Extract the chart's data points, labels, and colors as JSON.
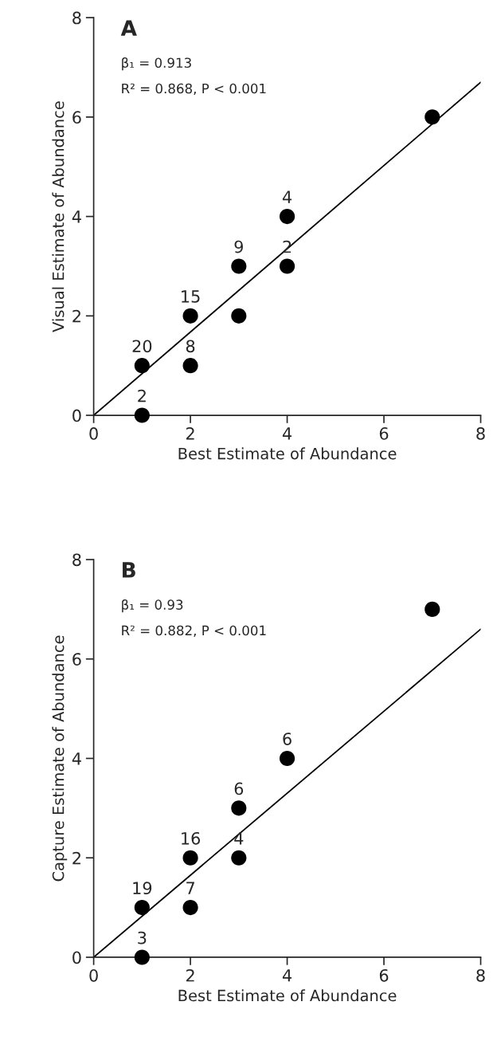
{
  "chart_data": [
    {
      "type": "scatter",
      "title": "A",
      "xlabel": "Best Estimate of Abundance",
      "ylabel": "Visual Estimate of Abundance",
      "xlim": [
        0,
        8
      ],
      "ylim": [
        0,
        8
      ],
      "xticks": [
        0,
        2,
        4,
        6,
        8
      ],
      "yticks": [
        0,
        2,
        4,
        6,
        8
      ],
      "grid": false,
      "legend": false,
      "series": [
        {
          "marker": "circle",
          "color": "#000000",
          "x": [
            1,
            1,
            2,
            2,
            3,
            3,
            4,
            4,
            7
          ],
          "values": [
            0,
            1,
            1,
            2,
            2,
            3,
            3,
            4,
            6
          ]
        },
        {
          "type": "line",
          "color": "#000000",
          "x": [
            0,
            8
          ],
          "values": [
            0,
            6.7
          ]
        }
      ],
      "annotations": [
        "β₁ = 0.913",
        "R² = 0.868, P < 0.001",
        {
          "text": "2",
          "x": 1,
          "y": 0
        },
        {
          "text": "20",
          "x": 1,
          "y": 1
        },
        {
          "text": "8",
          "x": 2,
          "y": 1
        },
        {
          "text": "15",
          "x": 2,
          "y": 2
        },
        {
          "text": "9",
          "x": 3,
          "y": 3
        },
        {
          "text": "2",
          "x": 4,
          "y": 3
        },
        {
          "text": "4",
          "x": 4,
          "y": 4
        }
      ]
    },
    {
      "type": "scatter",
      "title": "B",
      "xlabel": "Best Estimate of Abundance",
      "ylabel": "Capture Estimate of Abundance",
      "xlim": [
        0,
        8
      ],
      "ylim": [
        0,
        8
      ],
      "xticks": [
        0,
        2,
        4,
        6,
        8
      ],
      "yticks": [
        0,
        2,
        4,
        6,
        8
      ],
      "grid": false,
      "legend": false,
      "series": [
        {
          "marker": "circle",
          "color": "#000000",
          "x": [
            1,
            1,
            2,
            2,
            3,
            3,
            4,
            7
          ],
          "values": [
            0,
            1,
            1,
            2,
            2,
            3,
            4,
            7
          ]
        },
        {
          "type": "line",
          "color": "#000000",
          "x": [
            0,
            8
          ],
          "values": [
            0,
            6.6
          ]
        }
      ],
      "annotations": [
        "β₁ = 0.93",
        "R² = 0.882, P < 0.001",
        {
          "text": "3",
          "x": 1,
          "y": 0
        },
        {
          "text": "19",
          "x": 1,
          "y": 1
        },
        {
          "text": "7",
          "x": 2,
          "y": 1
        },
        {
          "text": "16",
          "x": 2,
          "y": 2
        },
        {
          "text": "4",
          "x": 3,
          "y": 2
        },
        {
          "text": "6",
          "x": 3,
          "y": 3
        },
        {
          "text": "6",
          "x": 4,
          "y": 4
        }
      ]
    }
  ]
}
